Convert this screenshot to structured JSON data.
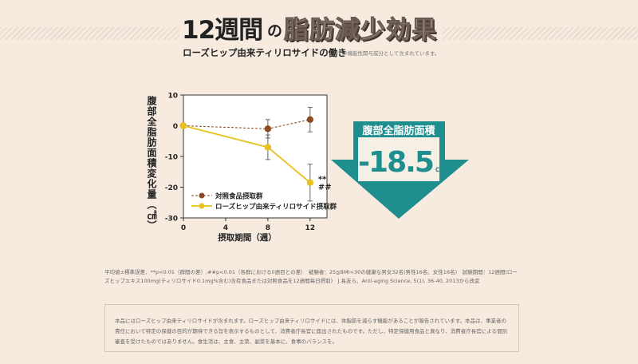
{
  "header": {
    "title_main": "12週間",
    "title_no": "の",
    "title_accent": "脂肪減少効果",
    "subtitle": "ローズヒップ由来ティリロサイドの働き",
    "subnote": "※機能性関与成分として含まれています。"
  },
  "callout": {
    "label": "腹部全脂肪面積",
    "value": "-18.5",
    "unit": "㎠",
    "arrow_color": "#1f8e8e",
    "panel_color": "#f5efe6"
  },
  "chart_data": {
    "type": "line",
    "ylabel": "腹部全脂肪面積変化量（㎠）",
    "xlabel": "摂取期間（週）",
    "x": [
      0,
      4,
      8,
      12
    ],
    "xticks": [
      "0",
      "4",
      "8",
      "12"
    ],
    "ylim": [
      -30,
      10
    ],
    "yticks": [
      "10",
      "0",
      "-10",
      "-20",
      "-30"
    ],
    "grid": false,
    "legend": "bottom-left",
    "series": [
      {
        "name": "対照食品摂取群",
        "color": "#8b4a21",
        "style": "dashed",
        "points": [
          [
            0,
            0
          ],
          [
            8,
            -1
          ],
          [
            12,
            2
          ]
        ],
        "err": [
          0,
          3,
          4
        ]
      },
      {
        "name": "ローズヒップ由来ティリロサイド摂取群",
        "color": "#e8c11e",
        "style": "solid",
        "points": [
          [
            0,
            0
          ],
          [
            8,
            -7
          ],
          [
            12,
            -18.5
          ]
        ],
        "err": [
          0,
          4,
          6
        ]
      }
    ],
    "annotations": [
      "**",
      "##"
    ]
  },
  "footnote": "平均値±標準誤差、**p<0.01（群間の差）,##p<0.01（各群における0週目との差）　被験者：25≦BMI<30の健康な男女32名(男性16名、女性16名)　試験期間：12週間(ローズヒップエキス100mg(ティリロサイド0.1mg%含む)含有食品または対照食品を12週間毎日摂取)　J.長友ら、Anti-aging Science, 5(1), 36-40, 2013から改変",
  "disclaimer": "本品にはローズヒップ由来ティリロサイドが含まれます。ローズヒップ由来ティリロサイドには、体脂肪を減らす機能があることが報告されています。本品は、事業者の責任において特定の保健の目的が期待できる旨を表示するものとして、消費者庁長官に届出されたものです。ただし、特定保健用食品と異なり、消費者庁長官による個別審査を受けたものではありません。食生活は、主食、主菜、副菜を基本に、食事のバランスを。"
}
